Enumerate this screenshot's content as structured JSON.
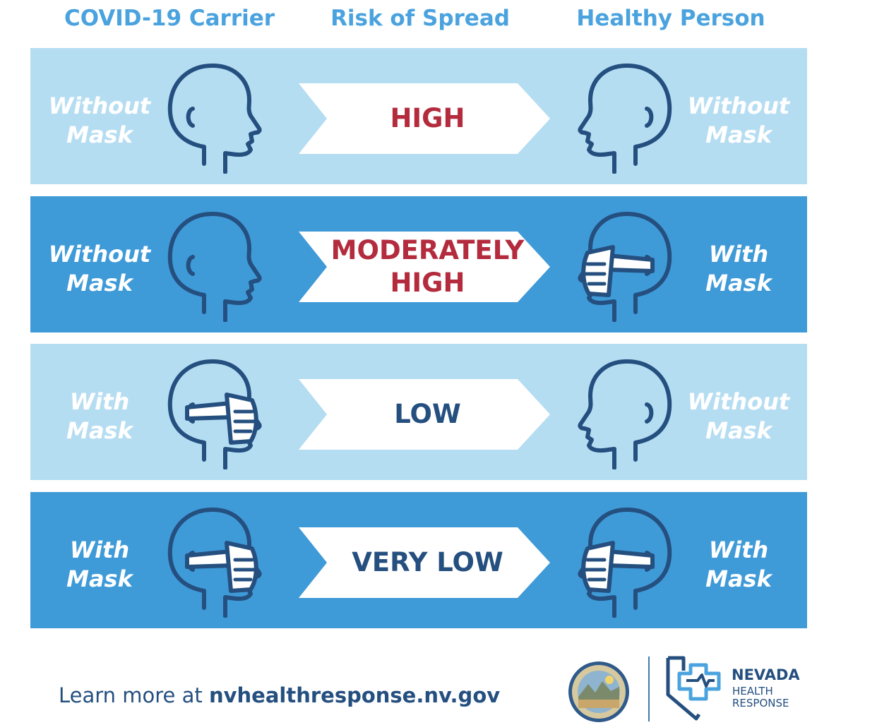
{
  "headers": {
    "carrier": "COVID-19 Carrier",
    "risk": "Risk of Spread",
    "healthy": "Healthy Person"
  },
  "rows": [
    {
      "carrier": "Without\nMask",
      "risk": "HIGH",
      "healthy": "Without\nMask"
    },
    {
      "carrier": "Without\nMask",
      "risk": "MODERATELY\nHIGH",
      "healthy": "With\nMask"
    },
    {
      "carrier": "With\nMask",
      "risk": "LOW",
      "healthy": "Without\nMask"
    },
    {
      "carrier": "With\nMask",
      "risk": "VERY LOW",
      "healthy": "With\nMask"
    }
  ],
  "footer": {
    "prefix": "Learn more at ",
    "url": "nvhealthresponse.nv.gov"
  },
  "logo": {
    "line1": "NEVADA",
    "line2": "HEALTH",
    "line3": "RESPONSE"
  },
  "colors": {
    "header_text": "#4aa3de",
    "row_light": "#b5ddf2",
    "row_dark": "#3f9ad8",
    "outline": "#244f7f",
    "risk_high": "#b32b3d",
    "risk_low": "#244f7f"
  }
}
